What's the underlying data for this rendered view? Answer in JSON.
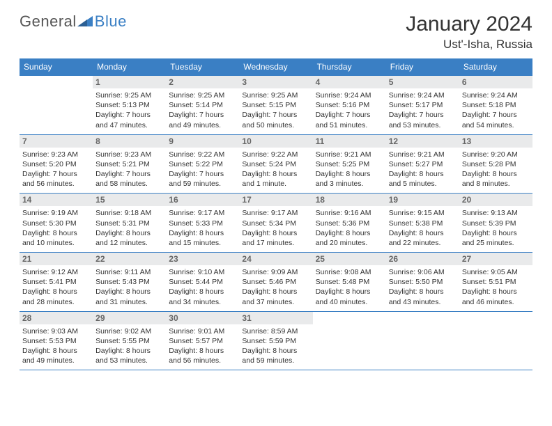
{
  "logo": {
    "word1": "General",
    "word2": "Blue"
  },
  "header": {
    "month_title": "January 2024",
    "location": "Ust'-Isha, Russia"
  },
  "colors": {
    "accent": "#3a7fc4",
    "header_bg": "#3a7fc4",
    "daynum_bg": "#e9eaeb",
    "text": "#333333"
  },
  "dow": [
    "Sunday",
    "Monday",
    "Tuesday",
    "Wednesday",
    "Thursday",
    "Friday",
    "Saturday"
  ],
  "weeks": [
    [
      {
        "num": "",
        "lines": [
          "",
          "",
          "",
          ""
        ]
      },
      {
        "num": "1",
        "lines": [
          "Sunrise: 9:25 AM",
          "Sunset: 5:13 PM",
          "Daylight: 7 hours",
          "and 47 minutes."
        ]
      },
      {
        "num": "2",
        "lines": [
          "Sunrise: 9:25 AM",
          "Sunset: 5:14 PM",
          "Daylight: 7 hours",
          "and 49 minutes."
        ]
      },
      {
        "num": "3",
        "lines": [
          "Sunrise: 9:25 AM",
          "Sunset: 5:15 PM",
          "Daylight: 7 hours",
          "and 50 minutes."
        ]
      },
      {
        "num": "4",
        "lines": [
          "Sunrise: 9:24 AM",
          "Sunset: 5:16 PM",
          "Daylight: 7 hours",
          "and 51 minutes."
        ]
      },
      {
        "num": "5",
        "lines": [
          "Sunrise: 9:24 AM",
          "Sunset: 5:17 PM",
          "Daylight: 7 hours",
          "and 53 minutes."
        ]
      },
      {
        "num": "6",
        "lines": [
          "Sunrise: 9:24 AM",
          "Sunset: 5:18 PM",
          "Daylight: 7 hours",
          "and 54 minutes."
        ]
      }
    ],
    [
      {
        "num": "7",
        "lines": [
          "Sunrise: 9:23 AM",
          "Sunset: 5:20 PM",
          "Daylight: 7 hours",
          "and 56 minutes."
        ]
      },
      {
        "num": "8",
        "lines": [
          "Sunrise: 9:23 AM",
          "Sunset: 5:21 PM",
          "Daylight: 7 hours",
          "and 58 minutes."
        ]
      },
      {
        "num": "9",
        "lines": [
          "Sunrise: 9:22 AM",
          "Sunset: 5:22 PM",
          "Daylight: 7 hours",
          "and 59 minutes."
        ]
      },
      {
        "num": "10",
        "lines": [
          "Sunrise: 9:22 AM",
          "Sunset: 5:24 PM",
          "Daylight: 8 hours",
          "and 1 minute."
        ]
      },
      {
        "num": "11",
        "lines": [
          "Sunrise: 9:21 AM",
          "Sunset: 5:25 PM",
          "Daylight: 8 hours",
          "and 3 minutes."
        ]
      },
      {
        "num": "12",
        "lines": [
          "Sunrise: 9:21 AM",
          "Sunset: 5:27 PM",
          "Daylight: 8 hours",
          "and 5 minutes."
        ]
      },
      {
        "num": "13",
        "lines": [
          "Sunrise: 9:20 AM",
          "Sunset: 5:28 PM",
          "Daylight: 8 hours",
          "and 8 minutes."
        ]
      }
    ],
    [
      {
        "num": "14",
        "lines": [
          "Sunrise: 9:19 AM",
          "Sunset: 5:30 PM",
          "Daylight: 8 hours",
          "and 10 minutes."
        ]
      },
      {
        "num": "15",
        "lines": [
          "Sunrise: 9:18 AM",
          "Sunset: 5:31 PM",
          "Daylight: 8 hours",
          "and 12 minutes."
        ]
      },
      {
        "num": "16",
        "lines": [
          "Sunrise: 9:17 AM",
          "Sunset: 5:33 PM",
          "Daylight: 8 hours",
          "and 15 minutes."
        ]
      },
      {
        "num": "17",
        "lines": [
          "Sunrise: 9:17 AM",
          "Sunset: 5:34 PM",
          "Daylight: 8 hours",
          "and 17 minutes."
        ]
      },
      {
        "num": "18",
        "lines": [
          "Sunrise: 9:16 AM",
          "Sunset: 5:36 PM",
          "Daylight: 8 hours",
          "and 20 minutes."
        ]
      },
      {
        "num": "19",
        "lines": [
          "Sunrise: 9:15 AM",
          "Sunset: 5:38 PM",
          "Daylight: 8 hours",
          "and 22 minutes."
        ]
      },
      {
        "num": "20",
        "lines": [
          "Sunrise: 9:13 AM",
          "Sunset: 5:39 PM",
          "Daylight: 8 hours",
          "and 25 minutes."
        ]
      }
    ],
    [
      {
        "num": "21",
        "lines": [
          "Sunrise: 9:12 AM",
          "Sunset: 5:41 PM",
          "Daylight: 8 hours",
          "and 28 minutes."
        ]
      },
      {
        "num": "22",
        "lines": [
          "Sunrise: 9:11 AM",
          "Sunset: 5:43 PM",
          "Daylight: 8 hours",
          "and 31 minutes."
        ]
      },
      {
        "num": "23",
        "lines": [
          "Sunrise: 9:10 AM",
          "Sunset: 5:44 PM",
          "Daylight: 8 hours",
          "and 34 minutes."
        ]
      },
      {
        "num": "24",
        "lines": [
          "Sunrise: 9:09 AM",
          "Sunset: 5:46 PM",
          "Daylight: 8 hours",
          "and 37 minutes."
        ]
      },
      {
        "num": "25",
        "lines": [
          "Sunrise: 9:08 AM",
          "Sunset: 5:48 PM",
          "Daylight: 8 hours",
          "and 40 minutes."
        ]
      },
      {
        "num": "26",
        "lines": [
          "Sunrise: 9:06 AM",
          "Sunset: 5:50 PM",
          "Daylight: 8 hours",
          "and 43 minutes."
        ]
      },
      {
        "num": "27",
        "lines": [
          "Sunrise: 9:05 AM",
          "Sunset: 5:51 PM",
          "Daylight: 8 hours",
          "and 46 minutes."
        ]
      }
    ],
    [
      {
        "num": "28",
        "lines": [
          "Sunrise: 9:03 AM",
          "Sunset: 5:53 PM",
          "Daylight: 8 hours",
          "and 49 minutes."
        ]
      },
      {
        "num": "29",
        "lines": [
          "Sunrise: 9:02 AM",
          "Sunset: 5:55 PM",
          "Daylight: 8 hours",
          "and 53 minutes."
        ]
      },
      {
        "num": "30",
        "lines": [
          "Sunrise: 9:01 AM",
          "Sunset: 5:57 PM",
          "Daylight: 8 hours",
          "and 56 minutes."
        ]
      },
      {
        "num": "31",
        "lines": [
          "Sunrise: 8:59 AM",
          "Sunset: 5:59 PM",
          "Daylight: 8 hours",
          "and 59 minutes."
        ]
      },
      {
        "num": "",
        "lines": [
          "",
          "",
          "",
          ""
        ]
      },
      {
        "num": "",
        "lines": [
          "",
          "",
          "",
          ""
        ]
      },
      {
        "num": "",
        "lines": [
          "",
          "",
          "",
          ""
        ]
      }
    ]
  ]
}
